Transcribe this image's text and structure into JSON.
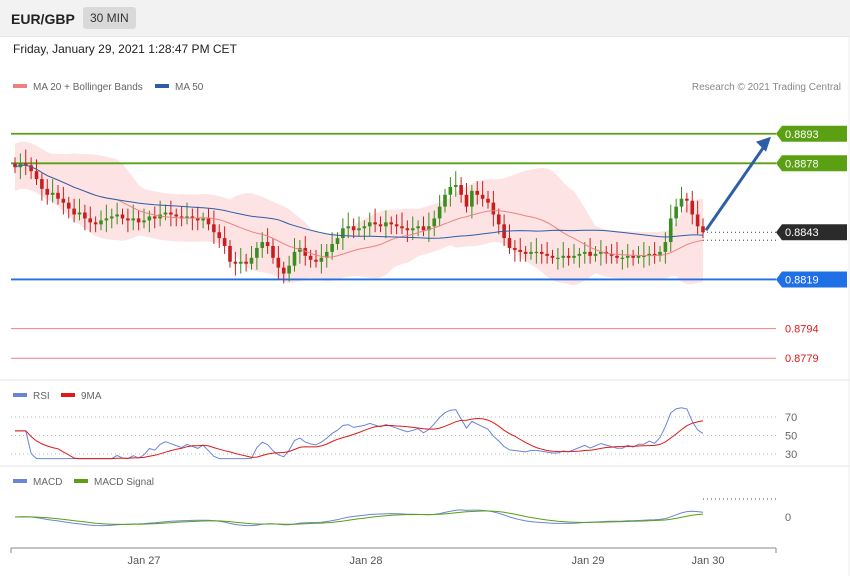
{
  "header": {
    "pair": "EUR/GBP",
    "timeframe": "30 MIN"
  },
  "datetime": "Friday, January 29, 2021 1:28:47 PM CET",
  "legend": {
    "ma_bb": "MA 20 + Bollinger Bands",
    "ma50": "MA 50",
    "credit": "Research © 2021 Trading Central",
    "rsi": "RSI",
    "rsi_ma": "9MA",
    "macd": "MACD",
    "macd_signal": "MACD Signal"
  },
  "colors": {
    "resistance": "#5aa012",
    "support": "#1f6fe6",
    "last": "#2b2b2b",
    "extra": "#e01818",
    "ma20": "#f08080",
    "ma50": "#2c5ea8",
    "band_fill": "#fde0e0",
    "bull": "#3a8e1e",
    "bear": "#c81e1e",
    "rsi": "#6a85d8",
    "rsi_ma": "#e01818",
    "macd": "#6a85d8",
    "macd_signal": "#5aa012",
    "arrow": "#2d5ea6"
  },
  "chart_data": [
    {
      "type": "candlestick",
      "title": "EUR/GBP 30 MIN",
      "x_ticks": [
        "Jan 27",
        "Jan 28",
        "Jan 29",
        "Jan 30"
      ],
      "ylim": [
        0.8773,
        0.89
      ],
      "levels": [
        {
          "value": 0.8893,
          "label": "0.8893",
          "kind": "resistance"
        },
        {
          "value": 0.8878,
          "label": "0.8878",
          "kind": "resistance"
        },
        {
          "value": 0.8843,
          "label": "0.8843",
          "kind": "last"
        },
        {
          "value": 0.8819,
          "label": "0.8819",
          "kind": "support"
        },
        {
          "value": 0.8794,
          "label": "0.8794",
          "kind": "extra"
        },
        {
          "value": 0.8779,
          "label": "0.8779",
          "kind": "extra"
        }
      ],
      "close": [
        0.8876,
        0.8878,
        0.8877,
        0.8874,
        0.887,
        0.8865,
        0.8862,
        0.8863,
        0.886,
        0.8858,
        0.8855,
        0.8852,
        0.8853,
        0.885,
        0.8848,
        0.8847,
        0.8849,
        0.885,
        0.8851,
        0.8852,
        0.885,
        0.8849,
        0.885,
        0.8848,
        0.8849,
        0.8851,
        0.885,
        0.8852,
        0.8853,
        0.8852,
        0.8851,
        0.885,
        0.8851,
        0.885,
        0.8849,
        0.885,
        0.8847,
        0.8843,
        0.884,
        0.8836,
        0.8828,
        0.8827,
        0.8828,
        0.8827,
        0.883,
        0.8835,
        0.8838,
        0.8836,
        0.883,
        0.8825,
        0.8822,
        0.8826,
        0.8833,
        0.8835,
        0.8831,
        0.8829,
        0.8828,
        0.883,
        0.8833,
        0.8837,
        0.884,
        0.8845,
        0.8846,
        0.8844,
        0.8845,
        0.8846,
        0.8848,
        0.8847,
        0.8846,
        0.8848,
        0.8847,
        0.8846,
        0.8845,
        0.8844,
        0.8845,
        0.8846,
        0.8844,
        0.8846,
        0.885,
        0.8856,
        0.8862,
        0.8866,
        0.8867,
        0.8862,
        0.8856,
        0.8864,
        0.8862,
        0.886,
        0.8858,
        0.8852,
        0.8847,
        0.884,
        0.8835,
        0.8834,
        0.8833,
        0.8832,
        0.8833,
        0.8833,
        0.8832,
        0.8831,
        0.883,
        0.883,
        0.8831,
        0.883,
        0.8831,
        0.8832,
        0.8833,
        0.8831,
        0.8832,
        0.8833,
        0.8832,
        0.8831,
        0.883,
        0.883,
        0.8831,
        0.883,
        0.8831,
        0.8831,
        0.8832,
        0.8831,
        0.8833,
        0.8838,
        0.885,
        0.8856,
        0.886,
        0.8859,
        0.8852,
        0.8846,
        0.8843
      ],
      "rsi": {
        "levels": [
          70,
          50,
          30
        ],
        "ylim": [
          20,
          80
        ]
      },
      "macd": {
        "levels": [
          0
        ]
      }
    }
  ]
}
